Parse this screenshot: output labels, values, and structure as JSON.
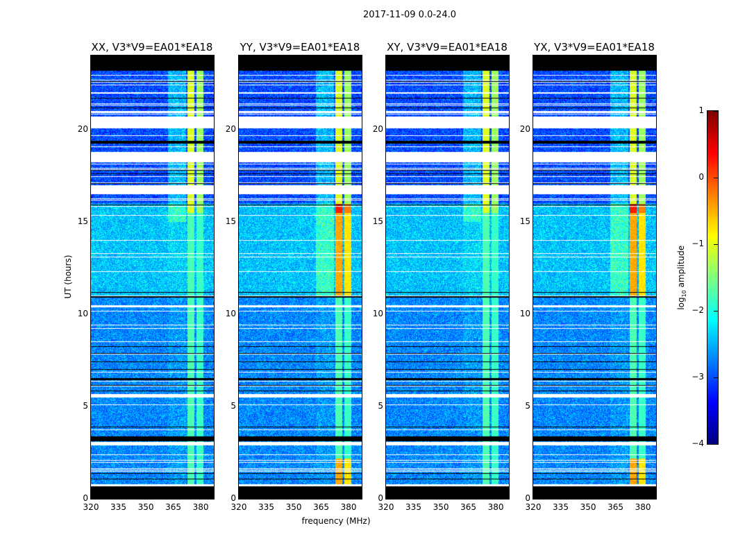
{
  "chart_data": {
    "type": "heatmap",
    "title": "2017-11-09 0.0-24.0",
    "panels": [
      {
        "title": "XX, V3*V9=EA01*EA18",
        "pol": "XX"
      },
      {
        "title": "YY, V3*V9=EA01*EA18",
        "pol": "YY"
      },
      {
        "title": "XY, V3*V9=EA01*EA18",
        "pol": "XY"
      },
      {
        "title": "YX, V3*V9=EA01*EA18",
        "pol": "YX"
      }
    ],
    "xlabel": "frequency (MHz)",
    "ylabel": "UT (hours)",
    "xlim": [
      320,
      387.2
    ],
    "ylim": [
      0,
      24
    ],
    "xticks": [
      "320",
      "335",
      "350",
      "365",
      "380"
    ],
    "xtick_values": [
      320,
      335,
      350,
      365,
      380
    ],
    "yticks": [
      "0",
      "5",
      "10",
      "15",
      "20"
    ],
    "ytick_values": [
      0,
      5,
      10,
      15,
      20
    ],
    "colorbar": {
      "label_prefix": "log",
      "label_sub": "10",
      "label_suffix": " amplitude",
      "ticks": [
        "1",
        "0",
        "−1",
        "−2",
        "−3",
        "−4"
      ],
      "tick_values": [
        1,
        0,
        -1,
        -2,
        -3,
        -4
      ],
      "range": [
        -4,
        1
      ],
      "colormap": "jet"
    },
    "flagged_hours_white": [
      [
        20.07,
        20.67
      ],
      [
        18.24,
        18.8
      ],
      [
        16.5,
        17.0
      ],
      [
        10.4,
        10.5
      ],
      [
        5.5,
        5.7
      ],
      [
        2.9,
        3.1
      ],
      [
        0.7,
        0.8
      ],
      [
        20.9,
        21.0
      ]
    ],
    "flagged_hours_black": [
      [
        23.2,
        24
      ],
      [
        19.25,
        19.4
      ],
      [
        10.9,
        11.0
      ],
      [
        6.45,
        6.55
      ],
      [
        3.15,
        3.4
      ],
      [
        0,
        0.7
      ]
    ],
    "baseline_log_amplitude": -2.7,
    "rfi_bands_mhz": [
      [
        362,
        368
      ],
      [
        368,
        372
      ],
      [
        372,
        377
      ],
      [
        377,
        382
      ]
    ]
  }
}
